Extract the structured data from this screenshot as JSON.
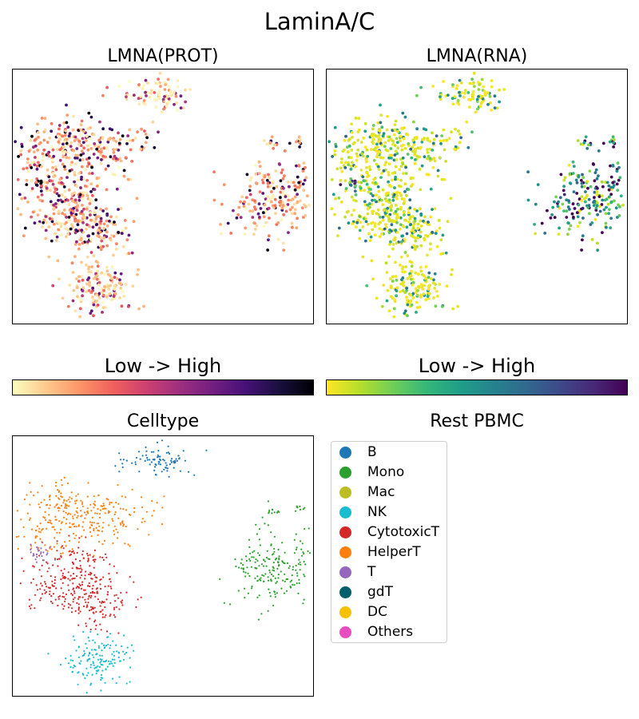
{
  "suptitle": "LaminA/C",
  "panels": {
    "prot": {
      "title": "LMNA(PROT)"
    },
    "rna": {
      "title": "LMNA(RNA)"
    },
    "celltype": {
      "title": "Celltype"
    }
  },
  "colorbars": {
    "prot": {
      "label": "Low  ->  High",
      "colormap": "magma_r"
    },
    "rna": {
      "label": "Low  ->  High",
      "colormap": "viridis_r"
    }
  },
  "legend": {
    "title": "Rest PBMC",
    "items": [
      {
        "label": "B",
        "color": "#1f77b4"
      },
      {
        "label": "Mono",
        "color": "#2ca02c"
      },
      {
        "label": "Mac",
        "color": "#bcbd22"
      },
      {
        "label": "NK",
        "color": "#17becf"
      },
      {
        "label": "CytotoxicT",
        "color": "#d62728"
      },
      {
        "label": "HelperT",
        "color": "#ff7f0e"
      },
      {
        "label": "T",
        "color": "#9467bd"
      },
      {
        "label": "gdT",
        "color": "#005f6b"
      },
      {
        "label": "DC",
        "color": "#f5c000"
      },
      {
        "label": "Others",
        "color": "#e84dc0"
      }
    ]
  },
  "chart_data": [
    {
      "type": "scatter",
      "title": "LMNA(PROT)",
      "xlabel": "",
      "ylabel": "",
      "axis_ticks": false,
      "colormap": "magma_r",
      "clusters": [
        {
          "celltype": "B",
          "x": 4.0,
          "y": 9.0,
          "level": 0.1
        },
        {
          "celltype": "HelperT",
          "x": 1.8,
          "y": 7.0,
          "level": 0.45
        },
        {
          "celltype": "CytotoxicT",
          "x": 2.3,
          "y": 5.0,
          "level": 0.35
        },
        {
          "celltype": "T",
          "x": 0.9,
          "y": 6.4,
          "level": 0.75
        },
        {
          "celltype": "NK",
          "x": 2.9,
          "y": 1.3,
          "level": 0.2
        },
        {
          "celltype": "Mono",
          "x": 8.6,
          "y": 5.1,
          "level": 0.4
        }
      ]
    },
    {
      "type": "scatter",
      "title": "LMNA(RNA)",
      "xlabel": "",
      "ylabel": "",
      "axis_ticks": false,
      "colormap": "viridis_r",
      "clusters": [
        {
          "celltype": "B",
          "x": 4.0,
          "y": 9.0,
          "level": 0.05
        },
        {
          "celltype": "HelperT",
          "x": 1.8,
          "y": 7.0,
          "level": 0.1
        },
        {
          "celltype": "CytotoxicT",
          "x": 2.3,
          "y": 5.0,
          "level": 0.08
        },
        {
          "celltype": "T",
          "x": 0.9,
          "y": 6.4,
          "level": 0.5
        },
        {
          "celltype": "NK",
          "x": 2.9,
          "y": 1.3,
          "level": 0.05
        },
        {
          "celltype": "Mono",
          "x": 8.6,
          "y": 5.1,
          "level": 0.85
        }
      ]
    },
    {
      "type": "scatter",
      "title": "Celltype",
      "xlabel": "",
      "ylabel": "",
      "axis_ticks": false,
      "legend_title": "Rest PBMC",
      "legend_position": "right",
      "series": [
        {
          "name": "B",
          "center": [
            4.0,
            9.0
          ],
          "approx_points": 80
        },
        {
          "name": "HelperT",
          "center": [
            1.8,
            7.0
          ],
          "approx_points": 300
        },
        {
          "name": "CytotoxicT",
          "center": [
            2.3,
            5.0
          ],
          "approx_points": 320
        },
        {
          "name": "T",
          "center": [
            0.9,
            6.4
          ],
          "approx_points": 25
        },
        {
          "name": "NK",
          "center": [
            2.9,
            1.3
          ],
          "approx_points": 150
        },
        {
          "name": "Mono",
          "center": [
            8.6,
            5.1
          ],
          "approx_points": 200
        }
      ]
    }
  ]
}
